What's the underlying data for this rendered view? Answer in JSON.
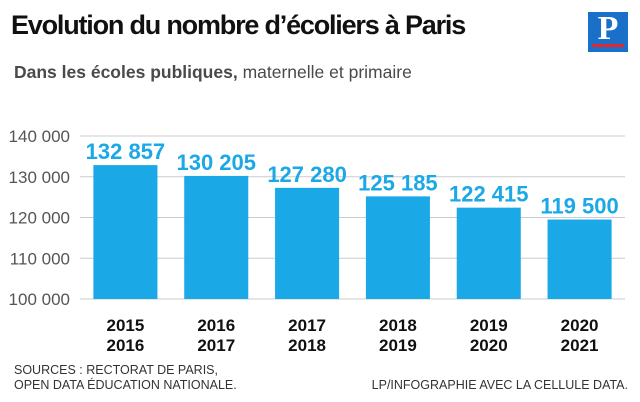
{
  "header": {
    "title": "Evolution du nombre d’écoliers à Paris",
    "subtitle_bold": "Dans les écoles publiques,",
    "subtitle_rest": " maternelle et primaire",
    "logo_letter": "P"
  },
  "footer": {
    "source_line1": "SOURCES : RECTORAT DE PARIS,",
    "source_line2": "OPEN DATA ÉDUCATION NATIONALE.",
    "credit": "LP/INFOGRAPHIE AVEC LA CELLULE DATA."
  },
  "colors": {
    "bar": "#1aa8e6",
    "value_label": "#1aa8e6",
    "grid": "#cccccc",
    "axis_labels": "#555555",
    "logo_blue": "#1a6fc8",
    "logo_red": "#e3262e"
  },
  "chart_data": {
    "type": "bar",
    "title": "Evolution du nombre d’écoliers à Paris",
    "subtitle": "Dans les écoles publiques, maternelle et primaire",
    "categories": [
      [
        "2015",
        "2016"
      ],
      [
        "2016",
        "2017"
      ],
      [
        "2017",
        "2018"
      ],
      [
        "2018",
        "2019"
      ],
      [
        "2019",
        "2020"
      ],
      [
        "2020",
        "2021"
      ]
    ],
    "values": [
      132857,
      130205,
      127280,
      125185,
      122415,
      119500
    ],
    "value_labels": [
      "132 857",
      "130 205",
      "127 280",
      "125 185",
      "122 415",
      "119 500"
    ],
    "yticks": [
      100000,
      110000,
      120000,
      130000,
      140000
    ],
    "ytick_labels": [
      "100 000",
      "110 000",
      "120 000",
      "130 000",
      "140 000"
    ],
    "ylim": [
      100000,
      140000
    ],
    "xlabel": "",
    "ylabel": "",
    "grid": true,
    "legend": "none"
  }
}
